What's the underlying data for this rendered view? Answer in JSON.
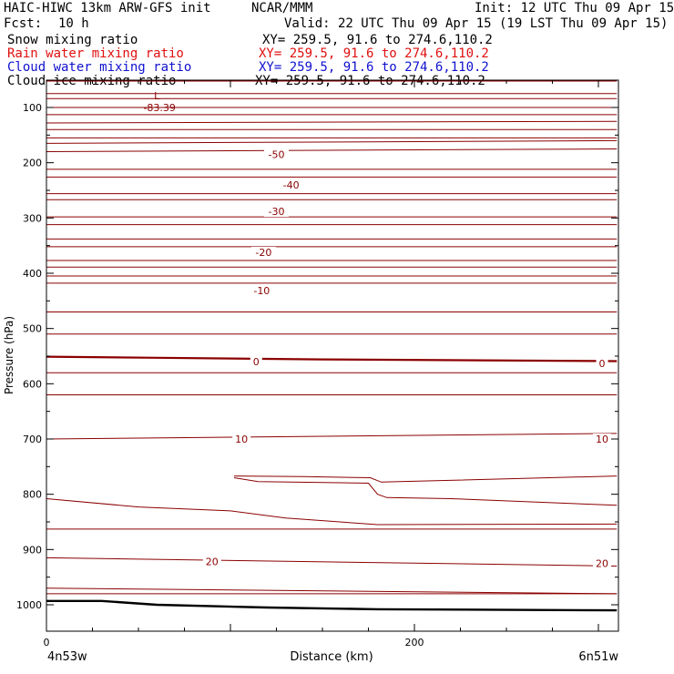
{
  "header": {
    "title_left": "HAIC-HIWC 13km ARW-GFS init",
    "org": "NCAR/MMM",
    "init": "Init: 12 UTC Thu 09 Apr 15",
    "fcst_label": "Fcst:",
    "fcst_value": "10 h",
    "valid": "Valid: 22 UTC Thu 09 Apr 15 (19 LST Thu 09 Apr 15)"
  },
  "fields": [
    {
      "name": "Snow mixing ratio",
      "xy": "XY= 259.5, 91.6 to 274.6,110.2",
      "color": "#000000"
    },
    {
      "name": "Rain water mixing ratio",
      "xy": "XY= 259.5, 91.6 to 274.6,110.2",
      "color": "#e01010"
    },
    {
      "name": "Cloud water mixing ratio",
      "xy": "XY= 259.5, 91.6 to 274.6,110.2",
      "color": "#1010d0"
    },
    {
      "name": "Cloud ice mixing ratio",
      "xy": "XY= 259.5, 91.6 to 274.6,110.2",
      "color": "#000000"
    }
  ],
  "chart_data": {
    "type": "line",
    "xlabel": "Distance (km)",
    "ylabel": "Pressure (hPa)",
    "xlim": [
      0,
      310
    ],
    "ylim_hpa": [
      1050,
      50
    ],
    "x_ticks": [
      0,
      200
    ],
    "y_ticks": [
      100,
      200,
      300,
      400,
      500,
      600,
      700,
      800,
      900,
      1000
    ],
    "endpoint_left": "4n53w",
    "endpoint_right": "6n51w",
    "contour_color": "#8b0000",
    "terrain_color": "#000000",
    "low_marker": {
      "symbol": "L",
      "value": "-83.39",
      "x_km": 60,
      "p_hpa": 92
    },
    "contour_labels": [
      {
        "text": "-50",
        "x_km": 125,
        "p_hpa": 185
      },
      {
        "text": "-40",
        "x_km": 133,
        "p_hpa": 240
      },
      {
        "text": "-30",
        "x_km": 125,
        "p_hpa": 288
      },
      {
        "text": "-20",
        "x_km": 118,
        "p_hpa": 362
      },
      {
        "text": "-10",
        "x_km": 117,
        "p_hpa": 431
      },
      {
        "text": "0",
        "x_km": 114,
        "p_hpa": 560
      },
      {
        "text": "0",
        "x_km": 302,
        "p_hpa": 563
      },
      {
        "text": "10",
        "x_km": 106,
        "p_hpa": 700
      },
      {
        "text": "10",
        "x_km": 302,
        "p_hpa": 700
      },
      {
        "text": "20",
        "x_km": 90,
        "p_hpa": 922
      },
      {
        "text": "20",
        "x_km": 302,
        "p_hpa": 925
      }
    ],
    "isotherm_levels_hpa": [
      [
        [
          0,
          50
        ],
        [
          310,
          50
        ]
      ],
      [
        [
          0,
          75
        ],
        [
          310,
          75
        ]
      ],
      [
        [
          0,
          84
        ],
        [
          310,
          84
        ]
      ],
      [
        [
          0,
          100
        ],
        [
          310,
          100
        ]
      ],
      [
        [
          0,
          113
        ],
        [
          310,
          113
        ]
      ],
      [
        [
          0,
          128
        ],
        [
          310,
          125
        ]
      ],
      [
        [
          0,
          140
        ],
        [
          310,
          140
        ]
      ],
      [
        [
          0,
          155
        ],
        [
          310,
          155
        ]
      ],
      [
        [
          0,
          165
        ],
        [
          310,
          160
        ]
      ],
      [
        [
          0,
          180
        ],
        [
          310,
          175
        ]
      ],
      [
        [
          0,
          212
        ],
        [
          310,
          212
        ]
      ],
      [
        [
          0,
          226
        ],
        [
          310,
          226
        ]
      ],
      [
        [
          0,
          256
        ],
        [
          310,
          256
        ]
      ],
      [
        [
          0,
          267
        ],
        [
          310,
          267
        ]
      ],
      [
        [
          0,
          298
        ],
        [
          310,
          298
        ]
      ],
      [
        [
          0,
          312
        ],
        [
          310,
          312
        ]
      ],
      [
        [
          0,
          338
        ],
        [
          310,
          338
        ]
      ],
      [
        [
          0,
          352
        ],
        [
          310,
          352
        ]
      ],
      [
        [
          0,
          377
        ],
        [
          310,
          377
        ]
      ],
      [
        [
          0,
          389
        ],
        [
          310,
          389
        ]
      ],
      [
        [
          0,
          405
        ],
        [
          310,
          405
        ]
      ],
      [
        [
          0,
          418
        ],
        [
          310,
          418
        ]
      ],
      [
        [
          0,
          470
        ],
        [
          310,
          470
        ]
      ],
      [
        [
          0,
          510
        ],
        [
          310,
          510
        ]
      ],
      [
        [
          0,
          580
        ],
        [
          310,
          580
        ]
      ],
      [
        [
          0,
          620
        ],
        [
          310,
          620
        ]
      ],
      [
        [
          0,
          700
        ],
        [
          310,
          690
        ]
      ],
      [
        [
          0,
          980
        ],
        [
          310,
          980
        ]
      ]
    ],
    "zero_isotherm": [
      [
        0,
        551
      ],
      [
        60,
        553
      ],
      [
        150,
        556
      ],
      [
        310,
        559
      ]
    ],
    "warm_contours": [
      [
        [
          102,
          767
        ],
        [
          140,
          768
        ],
        [
          176,
          770
        ],
        [
          182,
          778
        ],
        [
          310,
          767
        ]
      ],
      [
        [
          102,
          770
        ],
        [
          115,
          777
        ],
        [
          175,
          780
        ],
        [
          180,
          800
        ],
        [
          185,
          806
        ],
        [
          220,
          808
        ],
        [
          310,
          820
        ]
      ],
      [
        [
          0,
          808
        ],
        [
          50,
          823
        ],
        [
          100,
          830
        ],
        [
          130,
          843
        ],
        [
          180,
          855
        ],
        [
          310,
          854
        ]
      ],
      [
        [
          0,
          863
        ],
        [
          310,
          863
        ]
      ],
      [
        [
          0,
          915
        ],
        [
          310,
          930
        ]
      ],
      [
        [
          0,
          970
        ],
        [
          310,
          980
        ]
      ]
    ],
    "terrain_hpa": [
      [
        0,
        993
      ],
      [
        30,
        993
      ],
      [
        60,
        1000
      ],
      [
        120,
        1005
      ],
      [
        180,
        1008
      ],
      [
        310,
        1010
      ]
    ]
  }
}
